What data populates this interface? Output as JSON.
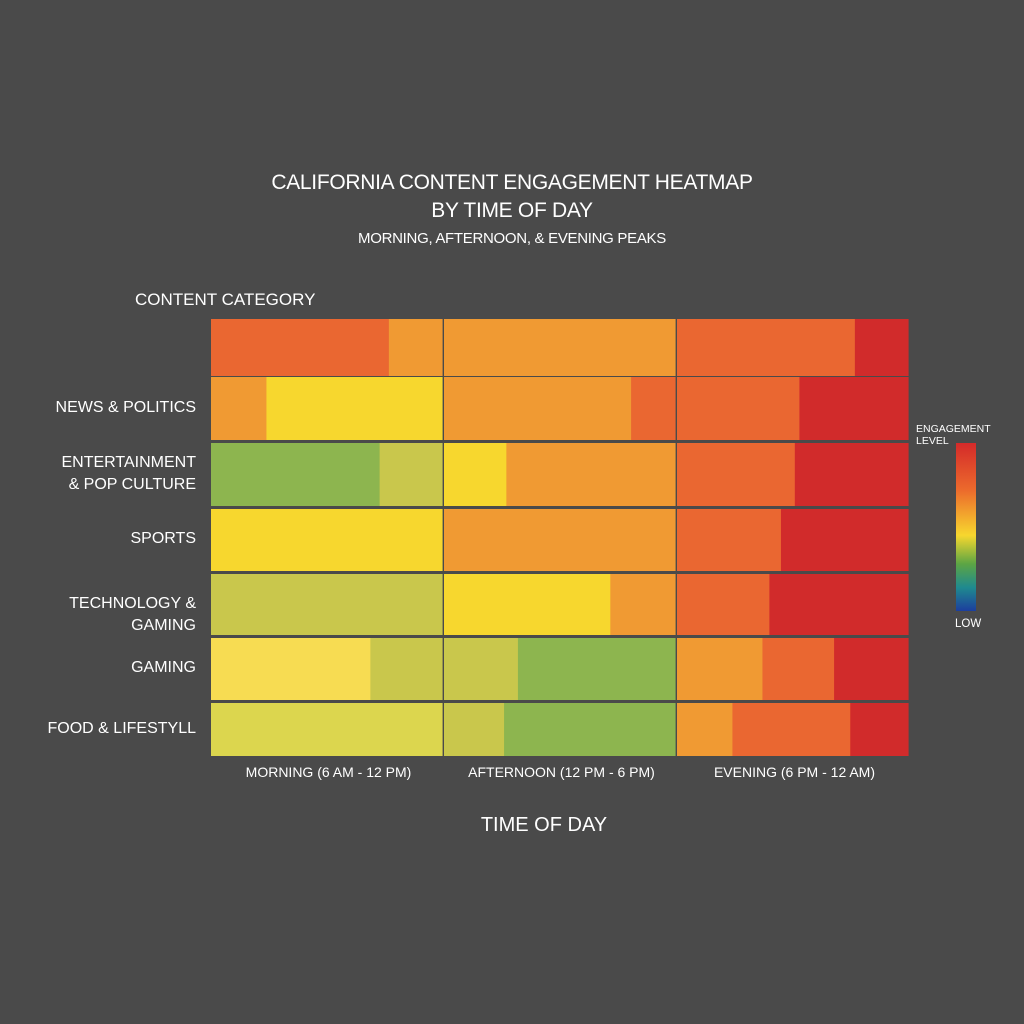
{
  "chart_data": {
    "type": "heatmap",
    "title": [
      "CALIFORNIA CONTENT ENGAGEMENT HEATMAP",
      "BY TIME OF DAY"
    ],
    "subtitle": "MORNING, AFTERNOON, & EVENING PEAKS",
    "ylabel": "CONTENT CATEGORY",
    "xlabel": "TIME OF DAY",
    "columns": [
      "MORNING (6 AM - 12 PM)",
      "AFTERNOON (12 PM - 6 PM)",
      "EVENING (6 PM - 12 AM)"
    ],
    "rows": [
      {
        "label": [],
        "cells": [
          [
            {
              "share": 0.77,
              "level": 0.8
            },
            {
              "share": 0.23,
              "level": 0.73
            }
          ],
          [
            {
              "share": 1.0,
              "level": 0.73
            }
          ],
          [
            {
              "share": 0.77,
              "level": 0.8
            },
            {
              "share": 0.23,
              "level": 0.93
            }
          ]
        ]
      },
      {
        "label": [
          "NEWS & POLITICS"
        ],
        "cells": [
          [
            {
              "share": 0.24,
              "level": 0.73
            },
            {
              "share": 0.76,
              "level": 0.55
            }
          ],
          [
            {
              "share": 0.81,
              "level": 0.73
            },
            {
              "share": 0.19,
              "level": 0.8
            }
          ],
          [
            {
              "share": 0.53,
              "level": 0.8
            },
            {
              "share": 0.47,
              "level": 0.93
            }
          ]
        ]
      },
      {
        "label": [
          "ENTERTAINMENT",
          "& POP CULTURE"
        ],
        "cells": [
          [
            {
              "share": 0.73,
              "level": 0.35
            },
            {
              "share": 0.27,
              "level": 0.45
            }
          ],
          [
            {
              "share": 0.27,
              "level": 0.55
            },
            {
              "share": 0.73,
              "level": 0.73
            }
          ],
          [
            {
              "share": 0.51,
              "level": 0.8
            },
            {
              "share": 0.49,
              "level": 0.93
            }
          ]
        ]
      },
      {
        "label": [
          "SPORTS"
        ],
        "cells": [
          [
            {
              "share": 1.0,
              "level": 0.55
            }
          ],
          [
            {
              "share": 1.0,
              "level": 0.73
            }
          ],
          [
            {
              "share": 0.45,
              "level": 0.8
            },
            {
              "share": 0.55,
              "level": 0.93
            }
          ]
        ]
      },
      {
        "label": [
          "TECHNOLOGY & GAMING"
        ],
        "cells": [
          [
            {
              "share": 1.0,
              "level": 0.45
            }
          ],
          [
            {
              "share": 0.72,
              "level": 0.55
            },
            {
              "share": 0.28,
              "level": 0.73
            }
          ],
          [
            {
              "share": 0.4,
              "level": 0.8
            },
            {
              "share": 0.6,
              "level": 0.93
            }
          ]
        ]
      },
      {
        "label": [
          "GAMING"
        ],
        "cells": [
          [
            {
              "share": 0.69,
              "level": 0.52
            },
            {
              "share": 0.31,
              "level": 0.45
            }
          ],
          [
            {
              "share": 0.32,
              "level": 0.45
            },
            {
              "share": 0.68,
              "level": 0.35
            }
          ],
          [
            {
              "share": 0.37,
              "level": 0.73
            },
            {
              "share": 0.31,
              "level": 0.8
            },
            {
              "share": 0.32,
              "level": 0.93
            }
          ]
        ]
      },
      {
        "label": [
          "FOOD & LIFESTYLL"
        ],
        "cells": [
          [
            {
              "share": 1.0,
              "level": 0.48
            }
          ],
          [
            {
              "share": 0.26,
              "level": 0.45
            },
            {
              "share": 0.74,
              "level": 0.35
            }
          ],
          [
            {
              "share": 0.24,
              "level": 0.73
            },
            {
              "share": 0.51,
              "level": 0.8
            },
            {
              "share": 0.25,
              "level": 0.93
            }
          ]
        ]
      }
    ],
    "legend": {
      "title": "ENGAGEMENT LEVEL",
      "low_label": "LOW",
      "placement": "right"
    },
    "colorscale": [
      {
        "level": 0.35,
        "color": "#8db54f"
      },
      {
        "level": 0.45,
        "color": "#c9c74c"
      },
      {
        "level": 0.48,
        "color": "#dcd64e"
      },
      {
        "level": 0.52,
        "color": "#f7dc52"
      },
      {
        "level": 0.55,
        "color": "#f7d72e"
      },
      {
        "level": 0.73,
        "color": "#f09a33"
      },
      {
        "level": 0.8,
        "color": "#ea6731"
      },
      {
        "level": 0.93,
        "color": "#d12b2b"
      }
    ]
  }
}
